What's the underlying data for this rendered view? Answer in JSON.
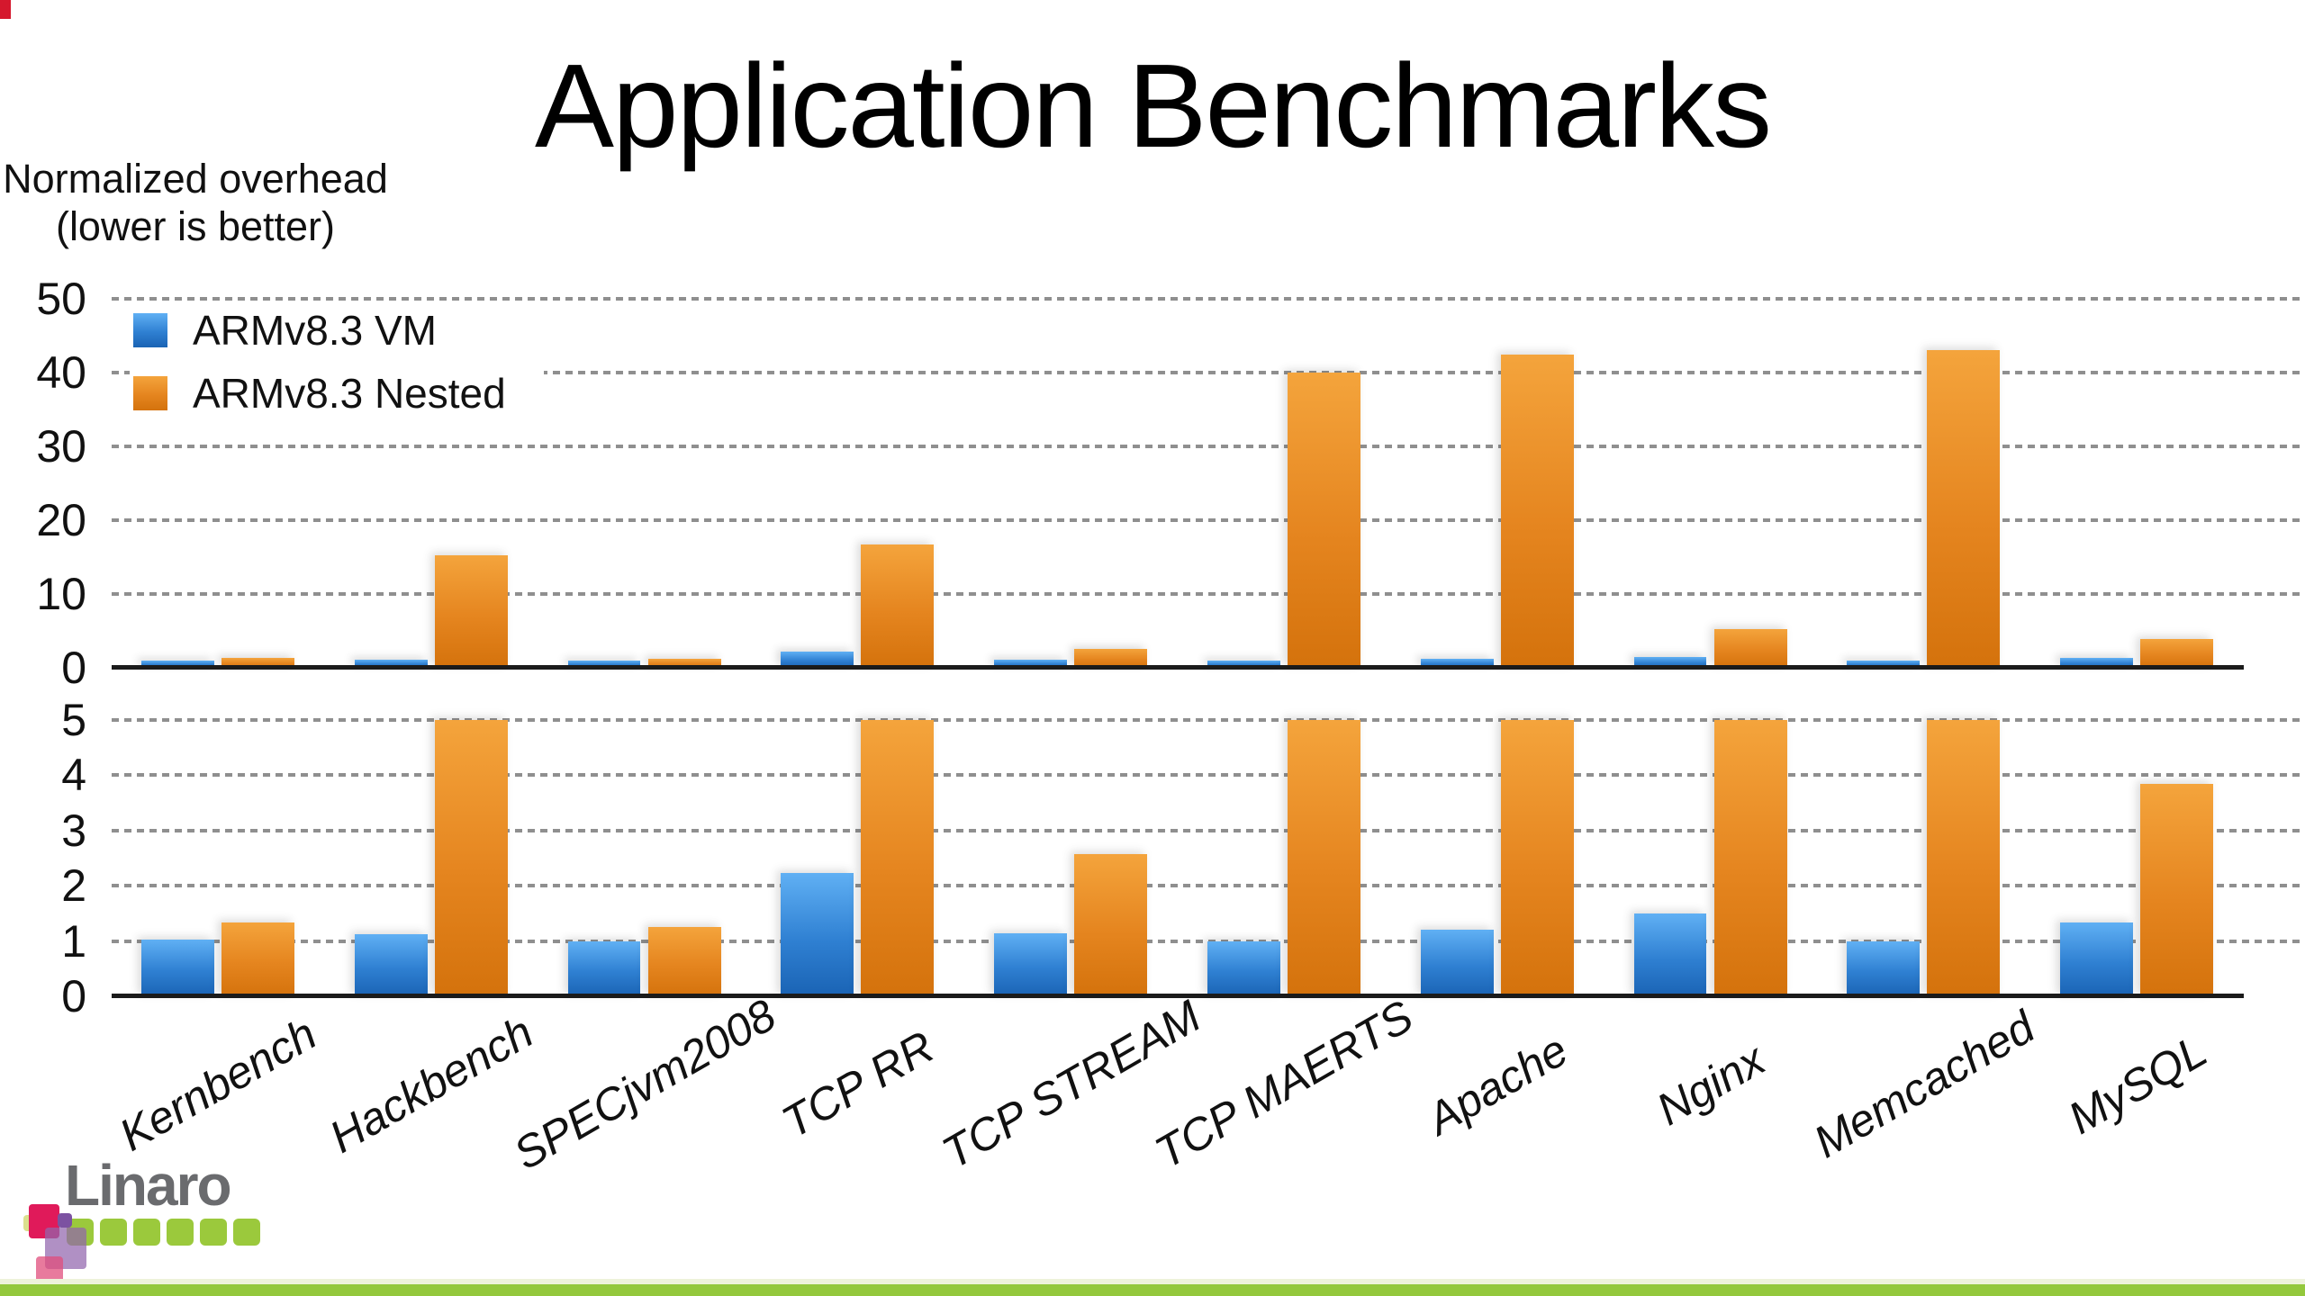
{
  "slide": {
    "title": "Application Benchmarks",
    "note_line1": "Normalized overhead",
    "note_line2": "(lower is better)"
  },
  "chart_data": {
    "type": "bar",
    "title": "Application Benchmarks",
    "ylabel": "Normalized overhead (lower is better)",
    "categories": [
      "Kernbench",
      "Hackbench",
      "SPECjvm2008",
      "TCP RR",
      "TCP STREAM",
      "TCP MAERTS",
      "Apache",
      "Nginx",
      "Memcached",
      "MySQL"
    ],
    "series": [
      {
        "name": "ARMv8.3 VM",
        "color": "#2e7fd0",
        "values": [
          1.02,
          1.13,
          1.0,
          2.23,
          1.14,
          1.0,
          1.2,
          1.5,
          1.0,
          1.34
        ]
      },
      {
        "name": "ARMv8.3 Nested",
        "color": "#e5821c",
        "values": [
          1.33,
          15.3,
          1.25,
          16.7,
          2.57,
          40.0,
          42.4,
          5.2,
          43.0,
          3.85
        ]
      }
    ],
    "panels": [
      {
        "name": "overview",
        "ylim": [
          0,
          50
        ],
        "yticks": [
          0,
          10,
          20,
          30,
          40,
          50
        ]
      },
      {
        "name": "zoomed",
        "ylim": [
          0,
          5
        ],
        "yticks": [
          0,
          1,
          2,
          3,
          4,
          5
        ],
        "clip": "values above 5 are clipped at panel top"
      }
    ],
    "grid": "horizontal dashed gray lines, solid black zero axis",
    "legend_position": "top-left inside overview panel"
  },
  "footer": {
    "logo_text": "Linaro"
  },
  "colors": {
    "bar_blue": "#2e7fd0",
    "bar_orange": "#e5821c",
    "footer_green": "#93c83c",
    "logo_gray": "#6a6b6e",
    "logo_green": "#9bc93c",
    "corner_red": "#d5182d",
    "gridline_gray": "#8f8f8f"
  }
}
